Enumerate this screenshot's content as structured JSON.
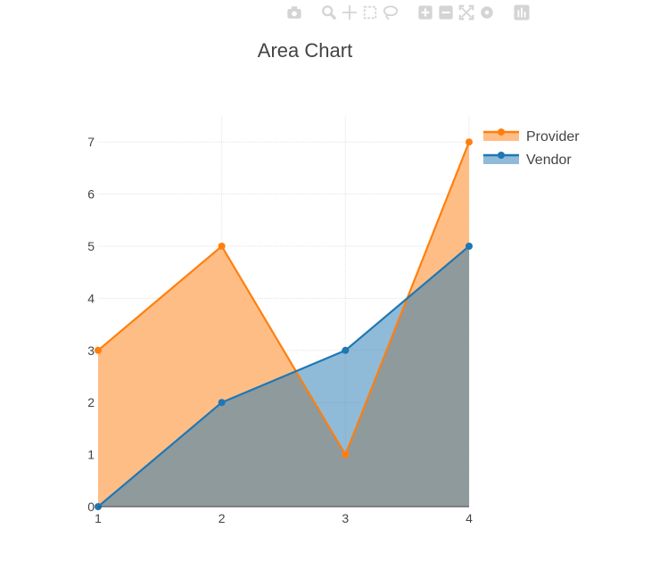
{
  "modebar": {
    "buttons": [
      {
        "icon": "camera-icon",
        "label": "Download plot as png"
      },
      {
        "icon": "zoom-icon",
        "label": "Zoom"
      },
      {
        "icon": "pan-icon",
        "label": "Pan"
      },
      {
        "icon": "box-select-icon",
        "label": "Box Select"
      },
      {
        "icon": "lasso-select-icon",
        "label": "Lasso Select"
      },
      {
        "icon": "zoom-in-icon",
        "label": "Zoom in"
      },
      {
        "icon": "zoom-out-icon",
        "label": "Zoom out"
      },
      {
        "icon": "autoscale-icon",
        "label": "Autoscale"
      },
      {
        "icon": "reset-axes-icon",
        "label": "Reset axes"
      },
      {
        "icon": "plotly-logo-icon",
        "label": "Produced with Plotly"
      }
    ],
    "icon_color": "#d4d4d4"
  },
  "chart_data": {
    "type": "area",
    "title": "Area Chart",
    "xlabel": "",
    "ylabel": "",
    "x": [
      1,
      2,
      3,
      4
    ],
    "xticks": [
      1,
      2,
      3,
      4
    ],
    "yticks": [
      0,
      1,
      2,
      3,
      4,
      5,
      6,
      7
    ],
    "xlim": [
      1,
      4
    ],
    "ylim": [
      0,
      7.5
    ],
    "grid": true,
    "legend_position": "top-right",
    "series": [
      {
        "name": "Provider",
        "values": [
          3,
          5,
          1,
          7
        ],
        "color": "#ff7f0e",
        "fill": "#ffbd86"
      },
      {
        "name": "Vendor",
        "values": [
          0,
          2,
          3,
          5
        ],
        "color": "#1f77b4",
        "fill": "rgba(31,119,180,0.5)"
      }
    ]
  }
}
